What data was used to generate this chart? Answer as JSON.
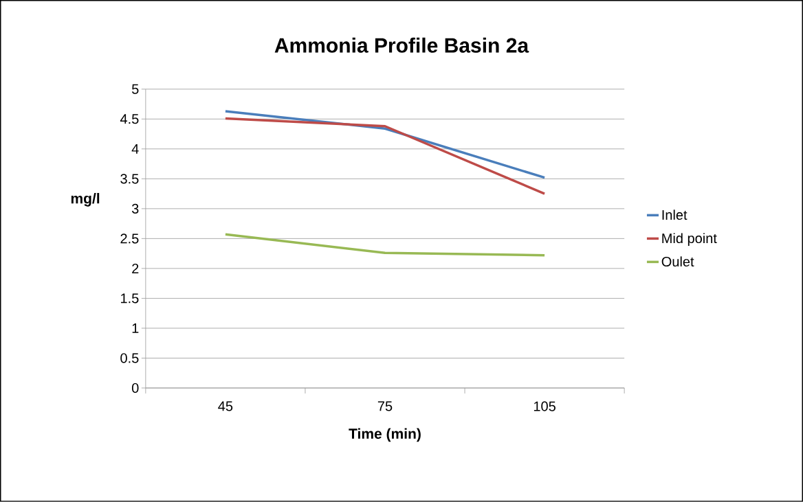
{
  "chart_data": {
    "type": "line",
    "title": "Ammonia Profile Basin 2a",
    "xlabel": "Time (min)",
    "ylabel": "mg/l",
    "categories": [
      "45",
      "75",
      "105"
    ],
    "series": [
      {
        "name": "Inlet",
        "color": "#4a7ebb",
        "values": [
          4.63,
          4.34,
          3.52
        ]
      },
      {
        "name": "Mid point",
        "color": "#be4b48",
        "values": [
          4.51,
          4.38,
          3.25
        ]
      },
      {
        "name": "Oulet",
        "color": "#98b954",
        "values": [
          2.57,
          2.26,
          2.22
        ]
      }
    ],
    "ylim": [
      0,
      5
    ],
    "yticks": [
      0,
      0.5,
      1,
      1.5,
      2,
      2.5,
      3,
      3.5,
      4,
      4.5,
      5
    ],
    "grid": "y",
    "legend": "right",
    "marker": "none",
    "line_style": "solid"
  }
}
